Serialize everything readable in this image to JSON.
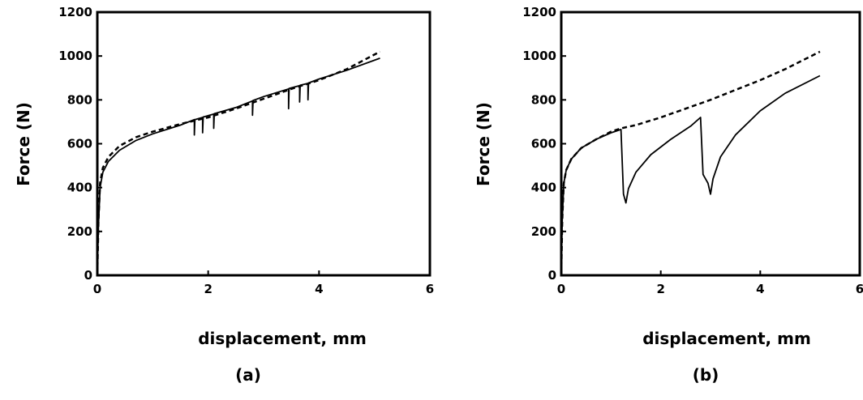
{
  "chart_data": [
    {
      "type": "line",
      "panel_label": "(a)",
      "xlabel": "displacement, mm",
      "ylabel": "Force (N)",
      "xlim": [
        0,
        6
      ],
      "ylim": [
        0,
        1200
      ],
      "xticks": [
        "0",
        "2",
        "4",
        "6"
      ],
      "yticks": [
        "0",
        "200",
        "400",
        "600",
        "800",
        "1000",
        "1200"
      ],
      "grid": false,
      "series": [
        {
          "style": "dashed",
          "x": [
            0,
            0.02,
            0.05,
            0.1,
            0.2,
            0.4,
            0.7,
            1.0,
            1.5,
            2.0,
            2.5,
            3.0,
            3.5,
            4.0,
            4.5,
            5.1
          ],
          "y": [
            0,
            250,
            420,
            490,
            540,
            590,
            630,
            655,
            690,
            720,
            760,
            805,
            850,
            890,
            940,
            1020
          ]
        },
        {
          "style": "solid",
          "x": [
            0,
            0.02,
            0.05,
            0.1,
            0.2,
            0.4,
            0.7,
            1.0,
            1.5,
            1.75,
            1.75,
            1.76,
            1.9,
            1.9,
            1.91,
            2.1,
            2.1,
            2.11,
            2.5,
            2.8,
            2.8,
            2.81,
            3.0,
            3.45,
            3.45,
            3.46,
            3.65,
            3.65,
            3.66,
            3.8,
            3.8,
            3.81,
            4.0,
            4.5,
            5.1
          ],
          "y": [
            0,
            230,
            400,
            470,
            520,
            570,
            615,
            645,
            685,
            710,
            640,
            710,
            720,
            650,
            722,
            735,
            670,
            737,
            765,
            795,
            730,
            797,
            815,
            850,
            760,
            852,
            865,
            790,
            867,
            875,
            800,
            877,
            895,
            935,
            990
          ]
        }
      ]
    },
    {
      "type": "line",
      "panel_label": "(b)",
      "xlabel": "displacement, mm",
      "ylabel": "Force (N)",
      "xlim": [
        0,
        6
      ],
      "ylim": [
        0,
        1200
      ],
      "xticks": [
        "0",
        "2",
        "4",
        "6"
      ],
      "yticks": [
        "0",
        "200",
        "400",
        "600",
        "800",
        "1000",
        "1200"
      ],
      "grid": false,
      "series": [
        {
          "style": "dashed",
          "x": [
            0,
            0.02,
            0.05,
            0.1,
            0.2,
            0.4,
            0.7,
            1.0,
            1.2,
            1.5,
            2.0,
            2.5,
            3.0,
            3.5,
            4.0,
            4.5,
            5.2
          ],
          "y": [
            0,
            250,
            420,
            480,
            530,
            580,
            620,
            655,
            670,
            685,
            720,
            760,
            800,
            845,
            890,
            940,
            1020
          ]
        },
        {
          "style": "solid",
          "x": [
            0,
            0.02,
            0.05,
            0.1,
            0.2,
            0.4,
            0.7,
            1.0,
            1.2,
            1.25,
            1.3,
            1.35,
            1.5,
            1.8,
            2.2,
            2.6,
            2.8,
            2.85,
            2.95,
            3.0,
            3.05,
            3.2,
            3.5,
            4.0,
            4.5,
            5.2
          ],
          "y": [
            0,
            250,
            420,
            480,
            530,
            580,
            620,
            650,
            665,
            370,
            330,
            395,
            470,
            550,
            620,
            680,
            720,
            460,
            420,
            370,
            440,
            540,
            640,
            750,
            830,
            910
          ]
        }
      ]
    }
  ]
}
